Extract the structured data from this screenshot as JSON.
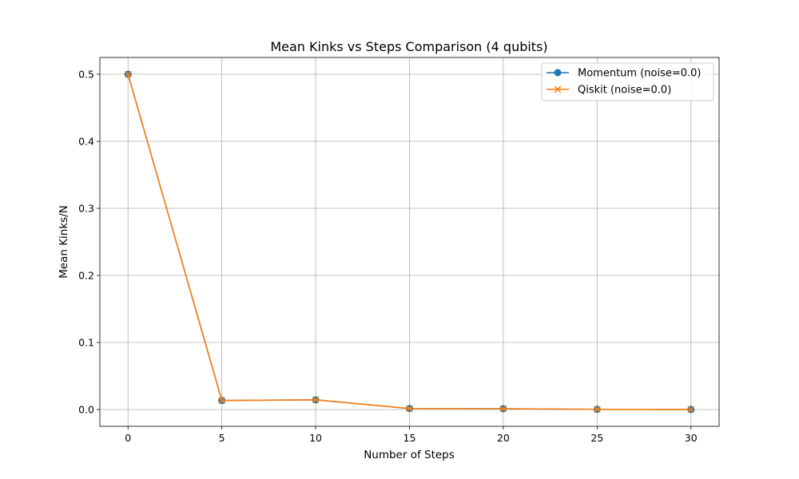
{
  "chart_data": {
    "type": "line",
    "title": "Mean Kinks vs Steps Comparison (4 qubits)",
    "xlabel": "Number of Steps",
    "ylabel": "Mean Kinks/N",
    "x": [
      0,
      5,
      10,
      15,
      20,
      25,
      30
    ],
    "xlim": [
      -1.5,
      31.5
    ],
    "ylim": [
      -0.025,
      0.525
    ],
    "xticks": [
      0,
      5,
      10,
      15,
      20,
      25,
      30
    ],
    "xtick_labels": [
      "0",
      "5",
      "10",
      "15",
      "20",
      "25",
      "30"
    ],
    "yticks": [
      0.0,
      0.1,
      0.2,
      0.3,
      0.4,
      0.5
    ],
    "ytick_labels": [
      "0.0",
      "0.1",
      "0.2",
      "0.3",
      "0.4",
      "0.5"
    ],
    "grid": true,
    "legend_position": "top-right",
    "series": [
      {
        "name": "Momentum (noise=0.0)",
        "values": [
          0.5,
          0.0135,
          0.0145,
          0.0015,
          0.0012,
          0.0003,
          0.0001
        ],
        "color": "#1f77b4",
        "marker": "circle"
      },
      {
        "name": "Qiskit (noise=0.0)",
        "values": [
          0.5,
          0.0135,
          0.0145,
          0.0015,
          0.0012,
          0.0003,
          0.0001
        ],
        "color": "#ff7f0e",
        "marker": "x"
      }
    ]
  }
}
